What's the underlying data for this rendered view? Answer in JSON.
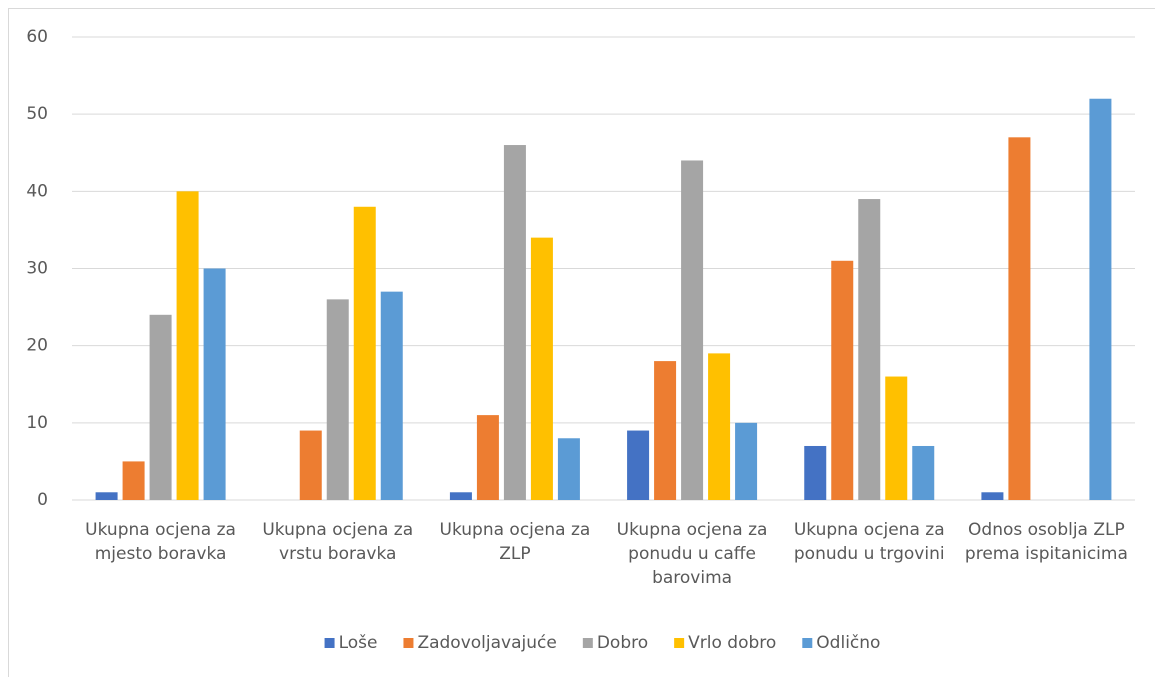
{
  "chart_data": {
    "type": "bar",
    "categories": [
      "Ukupna ocjena za mjesto boravka",
      "Ukupna ocjena za vrstu boravka",
      "Ukupna ocjena za ZLP",
      "Ukupna ocjena za ponudu u caffe barovima",
      "Ukupna ocjena za ponudu u trgovini",
      "Odnos osoblja ZLP prema ispitanicima"
    ],
    "series": [
      {
        "name": "Loše",
        "color": "#4472c4",
        "values": [
          1,
          0,
          1,
          9,
          7,
          1
        ]
      },
      {
        "name": "Zadovoljavajuće",
        "color": "#ed7d31",
        "values": [
          5,
          9,
          11,
          18,
          31,
          47
        ]
      },
      {
        "name": "Dobro",
        "color": "#a5a5a5",
        "values": [
          24,
          26,
          46,
          44,
          39,
          0
        ]
      },
      {
        "name": "Vrlo dobro",
        "color": "#ffc000",
        "values": [
          40,
          38,
          34,
          19,
          16,
          0
        ]
      },
      {
        "name": "Odlično",
        "color": "#5b9bd5",
        "values": [
          30,
          27,
          8,
          10,
          7,
          52
        ]
      }
    ],
    "ylim": [
      0,
      60
    ],
    "yticks": [
      0,
      10,
      20,
      30,
      40,
      50,
      60
    ],
    "grid": true,
    "legend": "bottom"
  }
}
